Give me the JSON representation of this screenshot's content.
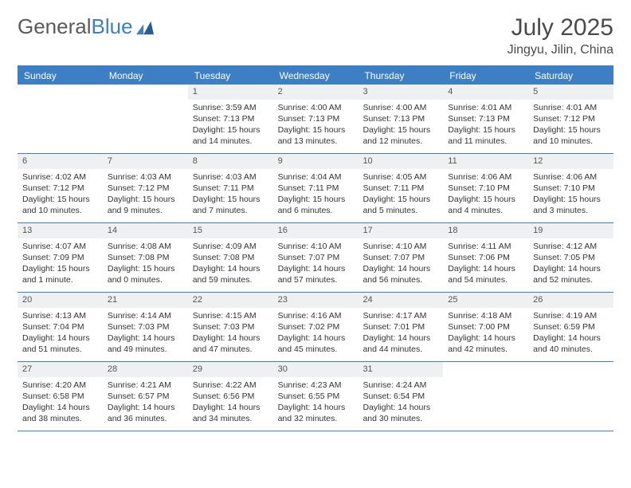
{
  "logo": {
    "text1": "General",
    "text2": "Blue"
  },
  "title": "July 2025",
  "location": "Jingyu, Jilin, China",
  "colors": {
    "header_bg": "#3d7fc4",
    "header_text": "#ffffff",
    "daynum_bg": "#eef0f2",
    "border": "#3d7fc4",
    "body_text": "#333333"
  },
  "weekdays": [
    "Sunday",
    "Monday",
    "Tuesday",
    "Wednesday",
    "Thursday",
    "Friday",
    "Saturday"
  ],
  "weeks": [
    [
      {
        "n": "",
        "lines": [
          "",
          "",
          ""
        ]
      },
      {
        "n": "",
        "lines": [
          "",
          "",
          ""
        ]
      },
      {
        "n": "1",
        "lines": [
          "Sunrise: 3:59 AM",
          "Sunset: 7:13 PM",
          "Daylight: 15 hours and 14 minutes."
        ]
      },
      {
        "n": "2",
        "lines": [
          "Sunrise: 4:00 AM",
          "Sunset: 7:13 PM",
          "Daylight: 15 hours and 13 minutes."
        ]
      },
      {
        "n": "3",
        "lines": [
          "Sunrise: 4:00 AM",
          "Sunset: 7:13 PM",
          "Daylight: 15 hours and 12 minutes."
        ]
      },
      {
        "n": "4",
        "lines": [
          "Sunrise: 4:01 AM",
          "Sunset: 7:13 PM",
          "Daylight: 15 hours and 11 minutes."
        ]
      },
      {
        "n": "5",
        "lines": [
          "Sunrise: 4:01 AM",
          "Sunset: 7:12 PM",
          "Daylight: 15 hours and 10 minutes."
        ]
      }
    ],
    [
      {
        "n": "6",
        "lines": [
          "Sunrise: 4:02 AM",
          "Sunset: 7:12 PM",
          "Daylight: 15 hours and 10 minutes."
        ]
      },
      {
        "n": "7",
        "lines": [
          "Sunrise: 4:03 AM",
          "Sunset: 7:12 PM",
          "Daylight: 15 hours and 9 minutes."
        ]
      },
      {
        "n": "8",
        "lines": [
          "Sunrise: 4:03 AM",
          "Sunset: 7:11 PM",
          "Daylight: 15 hours and 7 minutes."
        ]
      },
      {
        "n": "9",
        "lines": [
          "Sunrise: 4:04 AM",
          "Sunset: 7:11 PM",
          "Daylight: 15 hours and 6 minutes."
        ]
      },
      {
        "n": "10",
        "lines": [
          "Sunrise: 4:05 AM",
          "Sunset: 7:11 PM",
          "Daylight: 15 hours and 5 minutes."
        ]
      },
      {
        "n": "11",
        "lines": [
          "Sunrise: 4:06 AM",
          "Sunset: 7:10 PM",
          "Daylight: 15 hours and 4 minutes."
        ]
      },
      {
        "n": "12",
        "lines": [
          "Sunrise: 4:06 AM",
          "Sunset: 7:10 PM",
          "Daylight: 15 hours and 3 minutes."
        ]
      }
    ],
    [
      {
        "n": "13",
        "lines": [
          "Sunrise: 4:07 AM",
          "Sunset: 7:09 PM",
          "Daylight: 15 hours and 1 minute."
        ]
      },
      {
        "n": "14",
        "lines": [
          "Sunrise: 4:08 AM",
          "Sunset: 7:08 PM",
          "Daylight: 15 hours and 0 minutes."
        ]
      },
      {
        "n": "15",
        "lines": [
          "Sunrise: 4:09 AM",
          "Sunset: 7:08 PM",
          "Daylight: 14 hours and 59 minutes."
        ]
      },
      {
        "n": "16",
        "lines": [
          "Sunrise: 4:10 AM",
          "Sunset: 7:07 PM",
          "Daylight: 14 hours and 57 minutes."
        ]
      },
      {
        "n": "17",
        "lines": [
          "Sunrise: 4:10 AM",
          "Sunset: 7:07 PM",
          "Daylight: 14 hours and 56 minutes."
        ]
      },
      {
        "n": "18",
        "lines": [
          "Sunrise: 4:11 AM",
          "Sunset: 7:06 PM",
          "Daylight: 14 hours and 54 minutes."
        ]
      },
      {
        "n": "19",
        "lines": [
          "Sunrise: 4:12 AM",
          "Sunset: 7:05 PM",
          "Daylight: 14 hours and 52 minutes."
        ]
      }
    ],
    [
      {
        "n": "20",
        "lines": [
          "Sunrise: 4:13 AM",
          "Sunset: 7:04 PM",
          "Daylight: 14 hours and 51 minutes."
        ]
      },
      {
        "n": "21",
        "lines": [
          "Sunrise: 4:14 AM",
          "Sunset: 7:03 PM",
          "Daylight: 14 hours and 49 minutes."
        ]
      },
      {
        "n": "22",
        "lines": [
          "Sunrise: 4:15 AM",
          "Sunset: 7:03 PM",
          "Daylight: 14 hours and 47 minutes."
        ]
      },
      {
        "n": "23",
        "lines": [
          "Sunrise: 4:16 AM",
          "Sunset: 7:02 PM",
          "Daylight: 14 hours and 45 minutes."
        ]
      },
      {
        "n": "24",
        "lines": [
          "Sunrise: 4:17 AM",
          "Sunset: 7:01 PM",
          "Daylight: 14 hours and 44 minutes."
        ]
      },
      {
        "n": "25",
        "lines": [
          "Sunrise: 4:18 AM",
          "Sunset: 7:00 PM",
          "Daylight: 14 hours and 42 minutes."
        ]
      },
      {
        "n": "26",
        "lines": [
          "Sunrise: 4:19 AM",
          "Sunset: 6:59 PM",
          "Daylight: 14 hours and 40 minutes."
        ]
      }
    ],
    [
      {
        "n": "27",
        "lines": [
          "Sunrise: 4:20 AM",
          "Sunset: 6:58 PM",
          "Daylight: 14 hours and 38 minutes."
        ]
      },
      {
        "n": "28",
        "lines": [
          "Sunrise: 4:21 AM",
          "Sunset: 6:57 PM",
          "Daylight: 14 hours and 36 minutes."
        ]
      },
      {
        "n": "29",
        "lines": [
          "Sunrise: 4:22 AM",
          "Sunset: 6:56 PM",
          "Daylight: 14 hours and 34 minutes."
        ]
      },
      {
        "n": "30",
        "lines": [
          "Sunrise: 4:23 AM",
          "Sunset: 6:55 PM",
          "Daylight: 14 hours and 32 minutes."
        ]
      },
      {
        "n": "31",
        "lines": [
          "Sunrise: 4:24 AM",
          "Sunset: 6:54 PM",
          "Daylight: 14 hours and 30 minutes."
        ]
      },
      {
        "n": "",
        "lines": [
          "",
          "",
          ""
        ]
      },
      {
        "n": "",
        "lines": [
          "",
          "",
          ""
        ]
      }
    ]
  ]
}
